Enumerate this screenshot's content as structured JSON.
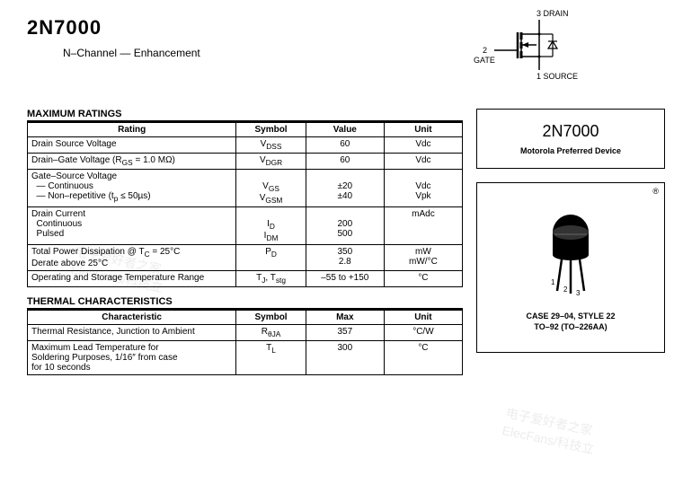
{
  "header": {
    "part": "2N7000",
    "subtitle": "N–Channel — Enhancement"
  },
  "symbol": {
    "pin_drain": "3 DRAIN",
    "pin_gate_num": "2",
    "pin_gate": "GATE",
    "pin_source": "1 SOURCE"
  },
  "ratings": {
    "title": "MAXIMUM RATINGS",
    "headers": {
      "rating": "Rating",
      "symbol": "Symbol",
      "value": "Value",
      "unit": "Unit"
    },
    "rows": [
      {
        "rating": "Drain Source Voltage",
        "symbol": "V<sub>DSS</sub>",
        "value": "60",
        "unit": "Vdc"
      },
      {
        "rating": "Drain–Gate Voltage (R<sub>GS</sub> = 1.0 MΩ)",
        "symbol": "V<sub>DGR</sub>",
        "value": "60",
        "unit": "Vdc"
      },
      {
        "rating": "Gate–Source Voltage<br>&nbsp;&nbsp;— Continuous<br>&nbsp;&nbsp;— Non–repetitive (t<sub>p</sub> ≤ 50µs)",
        "symbol": "<br>V<sub>GS</sub><br>V<sub>GSM</sub>",
        "value": "<br>±20<br>±40",
        "unit": "<br>Vdc<br>Vpk"
      },
      {
        "rating": "Drain Current<br>&nbsp;&nbsp;Continuous<br>&nbsp;&nbsp;Pulsed",
        "symbol": "<br>I<sub>D</sub><br>I<sub>DM</sub>",
        "value": "<br>200<br>500",
        "unit": "mAdc"
      },
      {
        "rating": "Total Power Dissipation @ T<sub>C</sub> = 25°C<br>Derate above 25°C",
        "symbol": "P<sub>D</sub>",
        "value": "350<br>2.8",
        "unit": "mW<br>mW/°C"
      },
      {
        "rating": "Operating and Storage Temperature Range",
        "symbol": "T<sub>J</sub>, T<sub>stg</sub>",
        "value": "–55 to +150",
        "unit": "°C"
      }
    ]
  },
  "thermal": {
    "title": "THERMAL CHARACTERISTICS",
    "headers": {
      "char": "Characteristic",
      "symbol": "Symbol",
      "max": "Max",
      "unit": "Unit"
    },
    "rows": [
      {
        "char": "Thermal Resistance, Junction to Ambient",
        "symbol": "R<sub>θJA</sub>",
        "max": "357",
        "unit": "°C/W"
      },
      {
        "char": "Maximum Lead Temperature for<br>Soldering Purposes, 1/16″ from case<br>for 10 seconds",
        "symbol": "T<sub>L</sub>",
        "max": "300",
        "unit": "°C"
      }
    ]
  },
  "right": {
    "box_title": "2N7000",
    "box_sub": "Motorola Preferred Device",
    "pkg_line1": "CASE 29–04, STYLE 22",
    "pkg_line2": "TO–92 (TO–226AA)",
    "pin1": "1",
    "pin2": "2",
    "pin3": "3",
    "reg": "®"
  }
}
